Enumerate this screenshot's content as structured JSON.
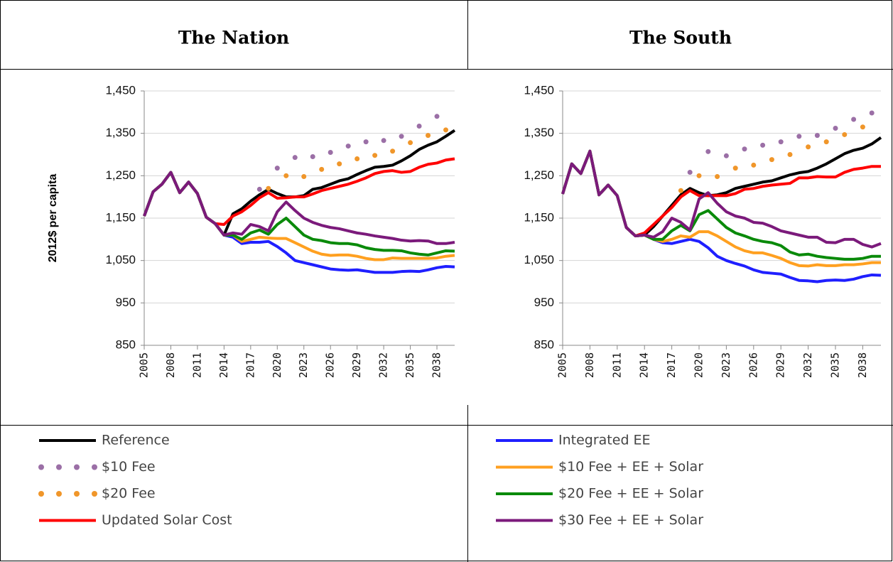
{
  "chart_data": [
    {
      "type": "line",
      "title": "The Nation",
      "ylabel": "2012$ per capita",
      "x": [
        2005,
        2006,
        2007,
        2008,
        2009,
        2010,
        2011,
        2012,
        2013,
        2014,
        2015,
        2016,
        2017,
        2018,
        2019,
        2020,
        2021,
        2022,
        2023,
        2024,
        2025,
        2026,
        2027,
        2028,
        2029,
        2030,
        2031,
        2032,
        2033,
        2034,
        2035,
        2036,
        2037,
        2038,
        2039,
        2040
      ],
      "xlim": [
        2005,
        2040
      ],
      "xticks": [
        2005,
        2008,
        2011,
        2014,
        2017,
        2020,
        2023,
        2026,
        2029,
        2032,
        2035,
        2038
      ],
      "ylim": [
        850,
        1450
      ],
      "yticks": [
        {
          "value": 850,
          "label": "850"
        },
        {
          "value": 950,
          "label": "950"
        },
        {
          "value": 1050,
          "label": "1,050"
        },
        {
          "value": 1150,
          "label": "1,150"
        },
        {
          "value": 1250,
          "label": "1,250"
        },
        {
          "value": 1350,
          "label": "1,350"
        },
        {
          "value": 1450,
          "label": "1,450"
        }
      ],
      "grid": true,
      "series": [
        {
          "name": "Reference",
          "color": "#000000",
          "values": [
            1155,
            1212,
            1230,
            1258,
            1210,
            1235,
            1208,
            1152,
            1137,
            1110,
            1160,
            1172,
            1190,
            1205,
            1218,
            1208,
            1200,
            1200,
            1203,
            1218,
            1222,
            1230,
            1238,
            1243,
            1253,
            1262,
            1270,
            1272,
            1275,
            1285,
            1297,
            1312,
            1322,
            1330,
            1343,
            1357
          ]
        },
        {
          "name": "$10 Fee",
          "color": "#9b6fa6",
          "style": "dots",
          "values": [
            null,
            null,
            null,
            null,
            null,
            null,
            null,
            null,
            null,
            null,
            null,
            null,
            null,
            1218,
            null,
            1268,
            null,
            1293,
            null,
            1295,
            null,
            1305,
            null,
            1320,
            null,
            1330,
            null,
            1333,
            null,
            1343,
            null,
            1367,
            null,
            1390,
            null,
            null
          ]
        },
        {
          "name": "$20 Fee",
          "color": "#f0962a",
          "style": "dots",
          "values": [
            null,
            null,
            null,
            null,
            null,
            null,
            null,
            null,
            null,
            null,
            null,
            null,
            null,
            null,
            1220,
            null,
            1250,
            null,
            1248,
            null,
            1265,
            null,
            1278,
            null,
            1290,
            null,
            1298,
            null,
            1308,
            null,
            1328,
            null,
            1345,
            null,
            1358,
            null
          ]
        },
        {
          "name": "Updated Solar Cost",
          "color": "#ff0000",
          "values": [
            1155,
            1212,
            1230,
            1258,
            1210,
            1235,
            1208,
            1152,
            1137,
            1135,
            1155,
            1165,
            1180,
            1198,
            1210,
            1197,
            1198,
            1200,
            1200,
            1207,
            1215,
            1220,
            1225,
            1230,
            1237,
            1245,
            1255,
            1260,
            1262,
            1258,
            1260,
            1270,
            1277,
            1280,
            1287,
            1290
          ]
        },
        {
          "name": "Integrated EE",
          "color": "#1f1fff",
          "values": [
            1155,
            1212,
            1230,
            1258,
            1210,
            1235,
            1208,
            1152,
            1137,
            1110,
            1105,
            1090,
            1093,
            1093,
            1095,
            1083,
            1068,
            1050,
            1045,
            1040,
            1035,
            1030,
            1028,
            1027,
            1028,
            1025,
            1022,
            1022,
            1022,
            1024,
            1025,
            1024,
            1028,
            1033,
            1036,
            1035
          ]
        },
        {
          "name": "$10 Fee + EE + Solar",
          "color": "#ffa020",
          "values": [
            1155,
            1212,
            1230,
            1258,
            1210,
            1235,
            1208,
            1152,
            1137,
            1110,
            1110,
            1095,
            1100,
            1105,
            1103,
            1102,
            1102,
            1092,
            1082,
            1072,
            1065,
            1062,
            1063,
            1063,
            1060,
            1055,
            1052,
            1052,
            1056,
            1055,
            1055,
            1055,
            1055,
            1056,
            1060,
            1062
          ]
        },
        {
          "name": "$20 Fee + EE + Solar",
          "color": "#0a8a0a",
          "values": [
            1155,
            1212,
            1230,
            1258,
            1210,
            1235,
            1208,
            1152,
            1137,
            1110,
            1110,
            1100,
            1115,
            1122,
            1112,
            1135,
            1150,
            1130,
            1110,
            1100,
            1097,
            1092,
            1090,
            1090,
            1087,
            1080,
            1076,
            1074,
            1074,
            1073,
            1068,
            1065,
            1063,
            1068,
            1073,
            1072
          ]
        },
        {
          "name": "$30 Fee + EE + Solar",
          "color": "#7b1a7b",
          "values": [
            1155,
            1212,
            1230,
            1258,
            1210,
            1235,
            1208,
            1152,
            1137,
            1110,
            1115,
            1112,
            1135,
            1130,
            1120,
            1165,
            1188,
            1168,
            1150,
            1140,
            1133,
            1128,
            1125,
            1120,
            1115,
            1112,
            1108,
            1105,
            1102,
            1098,
            1096,
            1097,
            1096,
            1090,
            1090,
            1093
          ]
        }
      ]
    },
    {
      "type": "line",
      "title": "The South",
      "x": [
        2005,
        2006,
        2007,
        2008,
        2009,
        2010,
        2011,
        2012,
        2013,
        2014,
        2015,
        2016,
        2017,
        2018,
        2019,
        2020,
        2021,
        2022,
        2023,
        2024,
        2025,
        2026,
        2027,
        2028,
        2029,
        2030,
        2031,
        2032,
        2033,
        2034,
        2035,
        2036,
        2037,
        2038,
        2039,
        2040
      ],
      "xlim": [
        2005,
        2040
      ],
      "xticks": [
        2005,
        2008,
        2011,
        2014,
        2017,
        2020,
        2023,
        2026,
        2029,
        2032,
        2035,
        2038
      ],
      "ylim": [
        850,
        1450
      ],
      "yticks": [
        {
          "value": 850,
          "label": "850"
        },
        {
          "value": 950,
          "label": "950"
        },
        {
          "value": 1050,
          "label": "1,050"
        },
        {
          "value": 1150,
          "label": "1,150"
        },
        {
          "value": 1250,
          "label": "1,250"
        },
        {
          "value": 1350,
          "label": "1,350"
        },
        {
          "value": 1450,
          "label": "1,450"
        }
      ],
      "grid": true,
      "series": [
        {
          "color": "#000000",
          "values": [
            1207,
            1278,
            1255,
            1308,
            1205,
            1228,
            1203,
            1128,
            1108,
            1110,
            1130,
            1155,
            1180,
            1205,
            1220,
            1210,
            1203,
            1205,
            1210,
            1220,
            1225,
            1230,
            1235,
            1238,
            1245,
            1252,
            1257,
            1260,
            1268,
            1278,
            1290,
            1302,
            1310,
            1315,
            1325,
            1340
          ]
        },
        {
          "color": "#9b6fa6",
          "style": "dots",
          "values": [
            null,
            null,
            null,
            null,
            null,
            null,
            null,
            null,
            null,
            null,
            null,
            null,
            null,
            null,
            1258,
            null,
            1307,
            null,
            1297,
            null,
            1313,
            null,
            1322,
            null,
            1330,
            null,
            1343,
            null,
            1345,
            null,
            1362,
            null,
            1383,
            null,
            1398,
            null
          ]
        },
        {
          "color": "#f0962a",
          "style": "dots",
          "values": [
            null,
            null,
            null,
            null,
            null,
            null,
            null,
            null,
            null,
            null,
            null,
            null,
            null,
            1215,
            null,
            1250,
            null,
            1248,
            null,
            1268,
            null,
            1275,
            null,
            1288,
            null,
            1300,
            null,
            1318,
            null,
            1330,
            null,
            1347,
            null,
            1365,
            null,
            null
          ]
        },
        {
          "color": "#ff0000",
          "values": [
            1207,
            1278,
            1255,
            1308,
            1205,
            1228,
            1203,
            1128,
            1108,
            1115,
            1135,
            1155,
            1175,
            1200,
            1215,
            1203,
            1203,
            1203,
            1203,
            1208,
            1218,
            1220,
            1225,
            1228,
            1230,
            1232,
            1245,
            1245,
            1248,
            1247,
            1247,
            1258,
            1265,
            1268,
            1272,
            1272
          ]
        },
        {
          "color": "#1f1fff",
          "values": [
            1207,
            1278,
            1255,
            1308,
            1205,
            1228,
            1203,
            1128,
            1108,
            1110,
            1100,
            1092,
            1090,
            1095,
            1100,
            1095,
            1080,
            1060,
            1050,
            1043,
            1037,
            1028,
            1022,
            1020,
            1018,
            1010,
            1003,
            1002,
            1000,
            1003,
            1004,
            1003,
            1006,
            1012,
            1016,
            1015
          ]
        },
        {
          "color": "#ffa020",
          "values": [
            1207,
            1278,
            1255,
            1308,
            1205,
            1228,
            1203,
            1128,
            1108,
            1110,
            1100,
            1095,
            1100,
            1108,
            1105,
            1118,
            1118,
            1108,
            1095,
            1082,
            1073,
            1068,
            1068,
            1062,
            1055,
            1045,
            1038,
            1037,
            1040,
            1038,
            1038,
            1040,
            1040,
            1042,
            1045,
            1045
          ]
        },
        {
          "color": "#0a8a0a",
          "values": [
            1207,
            1278,
            1255,
            1308,
            1205,
            1228,
            1203,
            1128,
            1108,
            1110,
            1100,
            1100,
            1120,
            1133,
            1120,
            1158,
            1168,
            1148,
            1128,
            1115,
            1108,
            1100,
            1095,
            1092,
            1085,
            1070,
            1063,
            1065,
            1060,
            1057,
            1055,
            1053,
            1053,
            1055,
            1060,
            1060
          ]
        },
        {
          "color": "#7b1a7b",
          "values": [
            1207,
            1278,
            1255,
            1308,
            1205,
            1228,
            1203,
            1128,
            1108,
            1110,
            1105,
            1118,
            1150,
            1140,
            1122,
            1195,
            1210,
            1185,
            1165,
            1155,
            1150,
            1140,
            1138,
            1130,
            1120,
            1115,
            1110,
            1105,
            1105,
            1093,
            1092,
            1100,
            1100,
            1088,
            1082,
            1090
          ]
        }
      ]
    }
  ]
}
